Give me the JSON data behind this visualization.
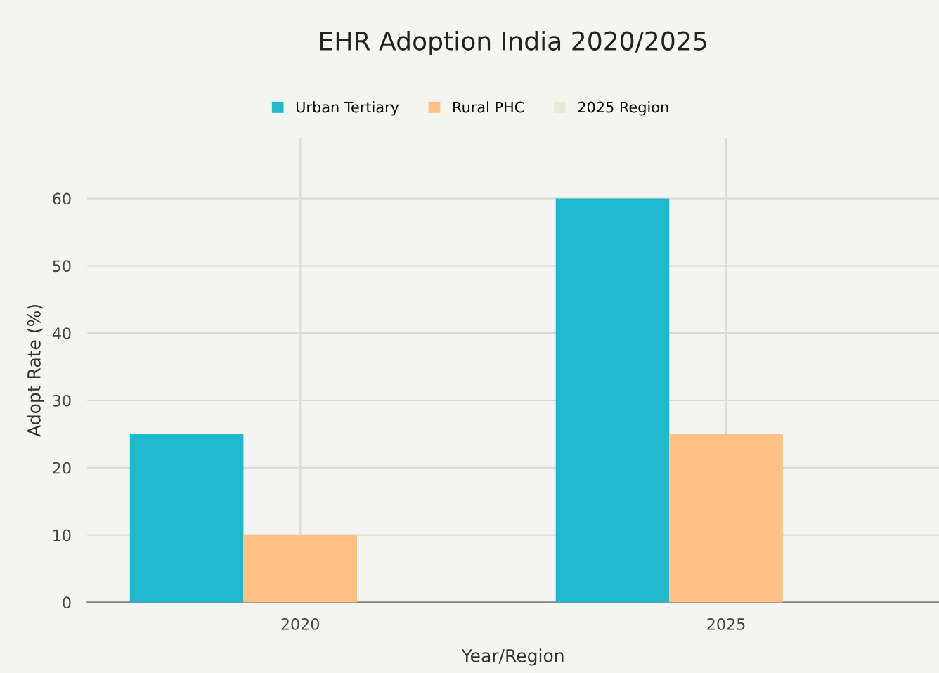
{
  "chart_data": {
    "type": "bar",
    "title": "EHR Adoption India 2020/2025",
    "xlabel": "Year/Region",
    "ylabel": "Adopt Rate (%)",
    "categories": [
      "2020",
      "2025"
    ],
    "series": [
      {
        "name": "Urban Tertiary",
        "color": "#1fb8cd",
        "values": [
          25,
          60
        ]
      },
      {
        "name": "Rural PHC",
        "color": "#ffc185",
        "values": [
          10,
          25
        ]
      },
      {
        "name": "2025 Region",
        "color": "#ece8d4",
        "values": [
          null,
          null
        ]
      }
    ],
    "ylim": [
      0,
      69
    ],
    "yticks": [
      0,
      10,
      20,
      30,
      40,
      50,
      60
    ],
    "grid": true,
    "legend": "top"
  }
}
